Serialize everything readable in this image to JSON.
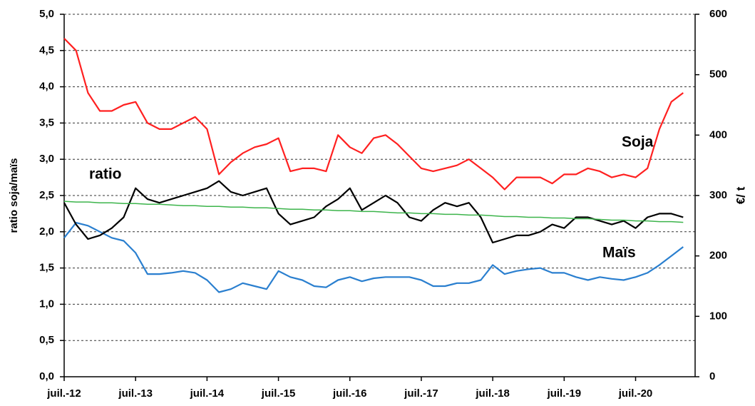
{
  "chart_data": {
    "type": "line",
    "y_label": "ratio soja/maïs",
    "y2_label": "€/ t",
    "x": [
      "2012-07",
      "2012-09",
      "2012-11",
      "2013-01",
      "2013-03",
      "2013-05",
      "2013-07",
      "2013-09",
      "2013-11",
      "2014-01",
      "2014-03",
      "2014-05",
      "2014-07",
      "2014-09",
      "2014-11",
      "2015-01",
      "2015-03",
      "2015-05",
      "2015-07",
      "2015-09",
      "2015-11",
      "2016-01",
      "2016-03",
      "2016-05",
      "2016-07",
      "2016-09",
      "2016-11",
      "2017-01",
      "2017-03",
      "2017-05",
      "2017-07",
      "2017-09",
      "2017-11",
      "2018-01",
      "2018-03",
      "2018-05",
      "2018-07",
      "2018-09",
      "2018-11",
      "2019-01",
      "2019-03",
      "2019-05",
      "2019-07",
      "2019-09",
      "2019-11",
      "2020-01",
      "2020-03",
      "2020-05",
      "2020-07",
      "2020-09",
      "2020-11",
      "2021-01",
      "2021-03"
    ],
    "xlim": [
      "2012-07",
      "2021-05"
    ],
    "xticks": [
      {
        "value": "2012-07",
        "label": "juil.-12"
      },
      {
        "value": "2013-07",
        "label": "juil.-13"
      },
      {
        "value": "2014-07",
        "label": "juil.-14"
      },
      {
        "value": "2015-07",
        "label": "juil.-15"
      },
      {
        "value": "2016-07",
        "label": "juil.-16"
      },
      {
        "value": "2017-07",
        "label": "juil.-17"
      },
      {
        "value": "2018-07",
        "label": "juil.-18"
      },
      {
        "value": "2019-07",
        "label": "juil.-19"
      },
      {
        "value": "2020-07",
        "label": "juil.-20"
      }
    ],
    "ylim": [
      0,
      5
    ],
    "yticks": [
      {
        "value": 0,
        "label": "0,0"
      },
      {
        "value": 0.5,
        "label": "0,5"
      },
      {
        "value": 1,
        "label": "1,0"
      },
      {
        "value": 1.5,
        "label": "1,5"
      },
      {
        "value": 2,
        "label": "2,0"
      },
      {
        "value": 2.5,
        "label": "2,5"
      },
      {
        "value": 3,
        "label": "3,0"
      },
      {
        "value": 3.5,
        "label": "3,5"
      },
      {
        "value": 4,
        "label": "4,0"
      },
      {
        "value": 4.5,
        "label": "4,5"
      },
      {
        "value": 5,
        "label": "5,0"
      }
    ],
    "y2lim": [
      0,
      600
    ],
    "y2ticks": [
      0,
      100,
      200,
      300,
      400,
      500,
      600
    ],
    "grid": true,
    "series": [
      {
        "name": "Soja",
        "color": "#ff2020",
        "axis": "y2",
        "values": [
          560,
          540,
          470,
          440,
          440,
          450,
          455,
          420,
          410,
          410,
          420,
          430,
          410,
          335,
          355,
          370,
          380,
          385,
          395,
          340,
          345,
          345,
          340,
          400,
          380,
          370,
          395,
          400,
          385,
          365,
          345,
          340,
          345,
          350,
          360,
          345,
          330,
          310,
          330,
          330,
          330,
          320,
          335,
          335,
          345,
          340,
          330,
          335,
          330,
          345,
          410,
          455,
          470
        ]
      },
      {
        "name": "Maïs",
        "color": "#2a7fcf",
        "axis": "y2",
        "values": [
          230,
          255,
          250,
          240,
          230,
          225,
          205,
          170,
          170,
          172,
          175,
          172,
          160,
          140,
          145,
          155,
          150,
          145,
          175,
          165,
          160,
          150,
          148,
          160,
          165,
          158,
          163,
          165,
          165,
          165,
          160,
          150,
          150,
          155,
          155,
          160,
          185,
          170,
          175,
          178,
          180,
          172,
          172,
          165,
          160,
          165,
          162,
          160,
          165,
          172,
          185,
          200,
          215
        ]
      },
      {
        "name": "ratio",
        "color": "#000000",
        "axis": "y",
        "values": [
          2.4,
          2.1,
          1.9,
          1.95,
          2.05,
          2.2,
          2.6,
          2.45,
          2.4,
          2.45,
          2.5,
          2.55,
          2.6,
          2.7,
          2.55,
          2.5,
          2.55,
          2.6,
          2.25,
          2.1,
          2.15,
          2.2,
          2.35,
          2.45,
          2.6,
          2.3,
          2.4,
          2.5,
          2.4,
          2.2,
          2.15,
          2.3,
          2.4,
          2.35,
          2.4,
          2.2,
          1.85,
          1.9,
          1.95,
          1.95,
          2.0,
          2.1,
          2.05,
          2.2,
          2.2,
          2.15,
          2.1,
          2.15,
          2.05,
          2.2,
          2.25,
          2.25,
          2.2
        ]
      },
      {
        "color": "#3cb44b",
        "axis": "y",
        "values": [
          2.42,
          2.41,
          2.41,
          2.4,
          2.4,
          2.39,
          2.39,
          2.38,
          2.38,
          2.37,
          2.36,
          2.36,
          2.35,
          2.35,
          2.34,
          2.34,
          2.33,
          2.33,
          2.32,
          2.31,
          2.31,
          2.3,
          2.3,
          2.29,
          2.29,
          2.28,
          2.28,
          2.27,
          2.26,
          2.26,
          2.25,
          2.25,
          2.24,
          2.24,
          2.23,
          2.23,
          2.22,
          2.21,
          2.21,
          2.2,
          2.2,
          2.19,
          2.19,
          2.18,
          2.18,
          2.17,
          2.16,
          2.16,
          2.15,
          2.15,
          2.14,
          2.14,
          2.13
        ]
      }
    ]
  }
}
